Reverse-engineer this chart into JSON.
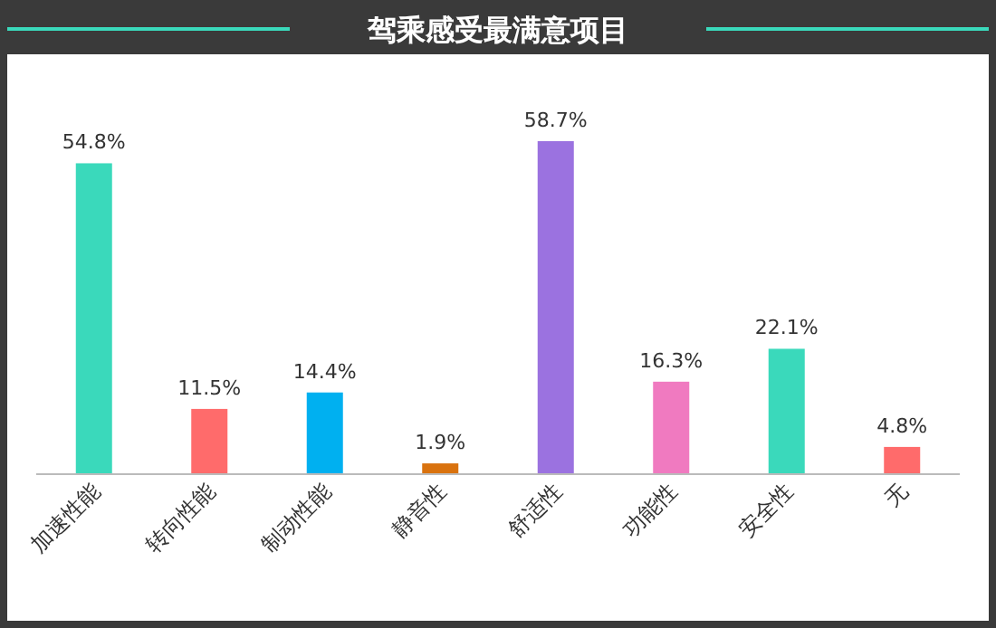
{
  "chart_data": {
    "type": "bar",
    "title": "驾乘感受最满意项目",
    "categories": [
      "加速性能",
      "转向性能",
      "制动性能",
      "静音性",
      "舒适性",
      "功能性",
      "安全性",
      "无"
    ],
    "values": [
      54.8,
      11.5,
      14.4,
      1.9,
      58.7,
      16.3,
      22.1,
      4.8
    ],
    "value_labels": [
      "54.8%",
      "11.5%",
      "14.4%",
      "1.9%",
      "58.7%",
      "16.3%",
      "22.1%",
      "4.8%"
    ],
    "colors": [
      "#3ad9bb",
      "#ff6b6b",
      "#00b0f0",
      "#d9720e",
      "#9b72e0",
      "#f07ac0",
      "#3ad9bb",
      "#ff6b6b"
    ]
  }
}
